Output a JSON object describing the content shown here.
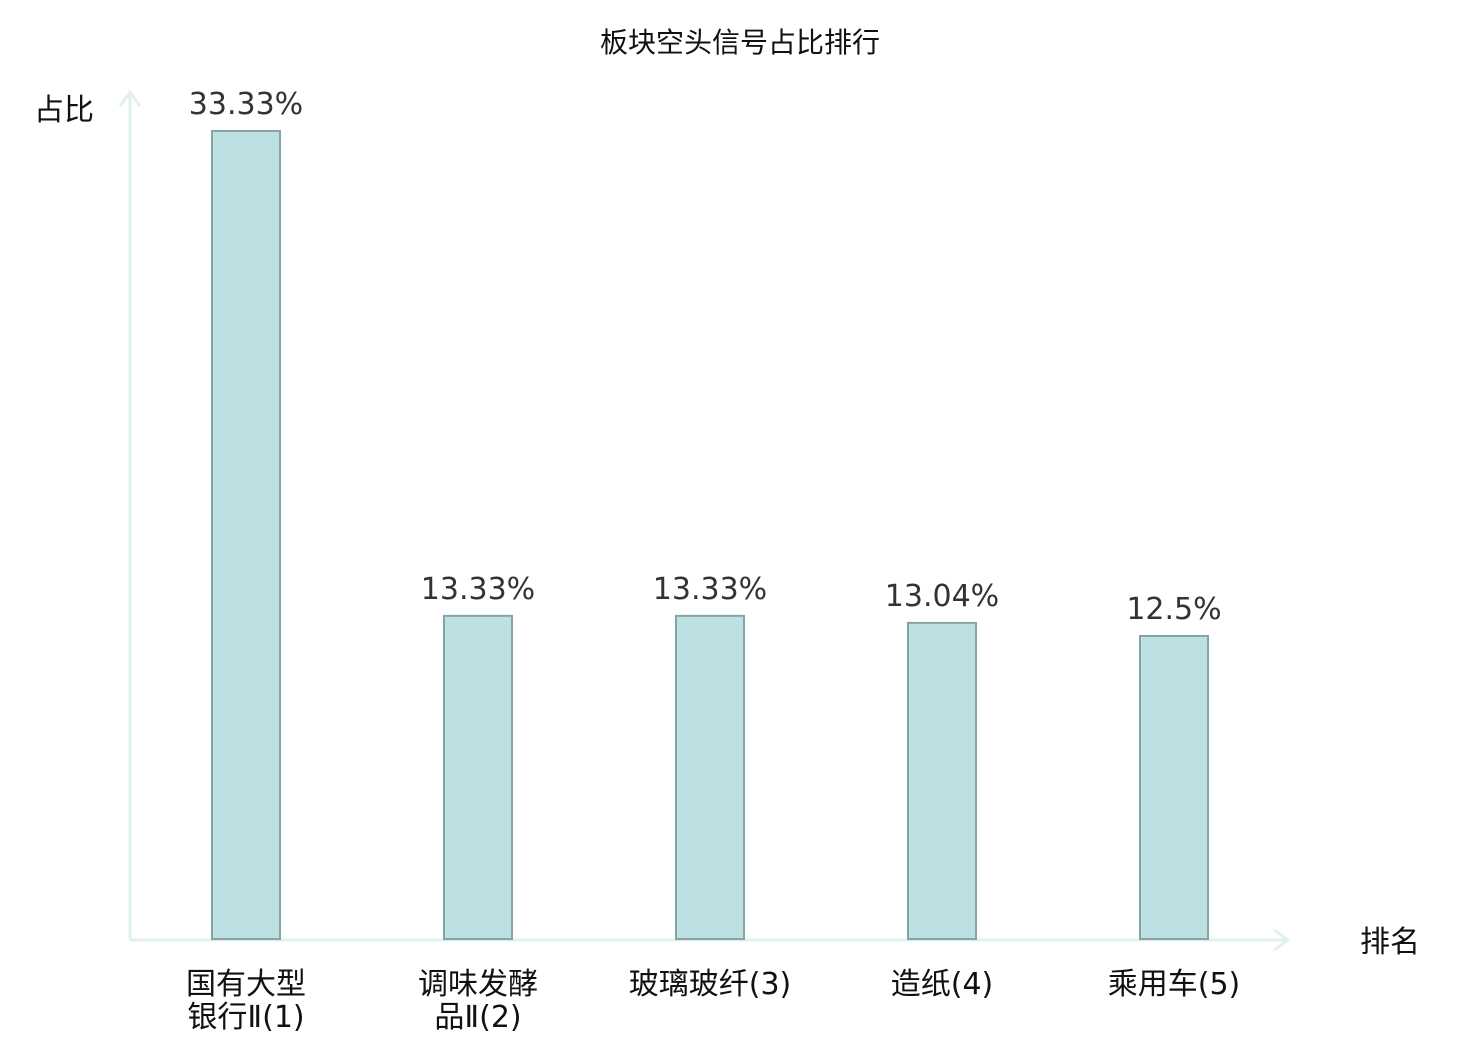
{
  "chart_data": {
    "type": "bar",
    "title": "板块空头信号占比排行",
    "ylabel": "占比",
    "xlabel": "排名",
    "ylim": [
      0,
      33.33
    ],
    "categories": [
      [
        "国有大型",
        "银行Ⅱ(1)"
      ],
      [
        "调味发酵",
        "品Ⅱ(2)"
      ],
      [
        "玻璃玻纤(3)"
      ],
      [
        "造纸(4)"
      ],
      [
        "乘用车(5)"
      ]
    ],
    "values": [
      33.33,
      13.33,
      13.33,
      13.04,
      12.5
    ],
    "value_labels": [
      "33.33%",
      "13.33%",
      "13.33%",
      "13.04%",
      "12.5%"
    ],
    "highlight_index": 2,
    "colors": {
      "bar_fill": "#bde0e2",
      "bar_stroke": "#84a4a6",
      "axis": "#dff2ef",
      "highlight_label": "#e00000",
      "label": "#111111",
      "value_label": "#333333"
    }
  }
}
